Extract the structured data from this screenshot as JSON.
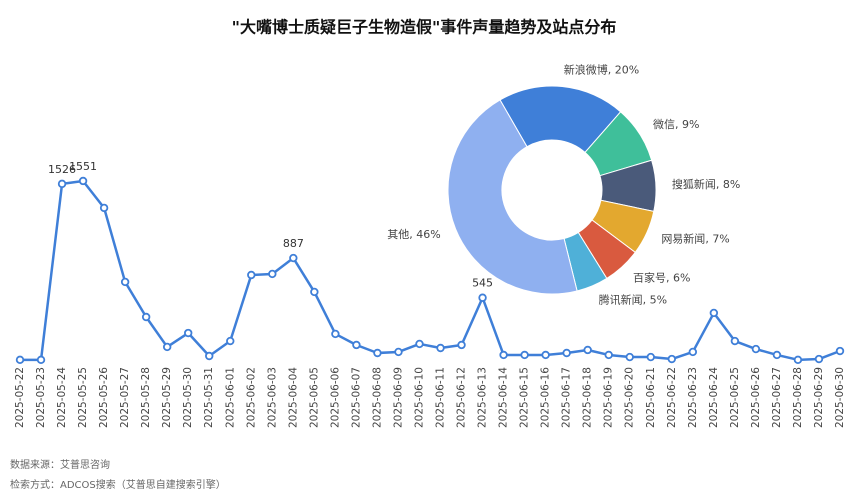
{
  "chart_data": [
    {
      "type": "line",
      "title": "\"大嘴博士质疑巨子生物造假\"事件声量趋势及站点分布",
      "categories": [
        "2025-05-22",
        "2025-05-23",
        "2025-05-24",
        "2025-05-25",
        "2025-05-26",
        "2025-05-27",
        "2025-05-28",
        "2025-05-29",
        "2025-05-30",
        "2025-05-31",
        "2025-06-01",
        "2025-06-02",
        "2025-06-03",
        "2025-06-04",
        "2025-06-05",
        "2025-06-06",
        "2025-06-07",
        "2025-06-08",
        "2025-06-09",
        "2025-06-10",
        "2025-06-11",
        "2025-06-12",
        "2025-06-13",
        "2025-06-14",
        "2025-06-15",
        "2025-06-16",
        "2025-06-17",
        "2025-06-18",
        "2025-06-19",
        "2025-06-20",
        "2025-06-21",
        "2025-06-22",
        "2025-06-23",
        "2025-06-24",
        "2025-06-25",
        "2025-06-26",
        "2025-06-27",
        "2025-06-28",
        "2025-06-29",
        "2025-06-30"
      ],
      "series": [
        {
          "name": "声量",
          "color": "#3f7fd8",
          "values": [
            10,
            10,
            1526,
            1551,
            1319,
            681,
            379,
            121,
            241,
            43,
            172,
            741,
            750,
            887,
            595,
            233,
            138,
            69,
            78,
            147,
            112,
            138,
            545,
            52,
            52,
            52,
            69,
            95,
            52,
            34,
            34,
            17,
            78,
            414,
            172,
            103,
            52,
            10,
            17,
            86
          ],
          "value_labels": [
            null,
            null,
            "1526",
            "1551",
            null,
            null,
            null,
            null,
            null,
            null,
            null,
            null,
            null,
            "887",
            null,
            null,
            null,
            null,
            null,
            null,
            null,
            null,
            "545",
            null,
            null,
            null,
            null,
            null,
            null,
            null,
            null,
            null,
            null,
            null,
            null,
            null,
            null,
            null,
            null,
            null
          ]
        }
      ],
      "ylim": [
        0,
        2800
      ]
    },
    {
      "type": "pie",
      "categories": [
        "新浪微博",
        "微信",
        "搜狐新闻",
        "网易新闻",
        "百家号",
        "腾讯新闻",
        "其他"
      ],
      "values": [
        20,
        9,
        8,
        7,
        6,
        5,
        46
      ],
      "value_labels": [
        "20%",
        "9%",
        "8%",
        "7%",
        "6%",
        "5%",
        "46%"
      ],
      "colors": [
        "#3f7fd8",
        "#3fbf9a",
        "#4a5a7a",
        "#e3a82f",
        "#d95a3f",
        "#4fb0d8",
        "#8fb0f0"
      ],
      "donut": true
    }
  ],
  "footer": {
    "source": "数据来源：艾普思咨询",
    "method": "检索方式：ADCOS搜索（艾普思自建搜索引擎）"
  }
}
